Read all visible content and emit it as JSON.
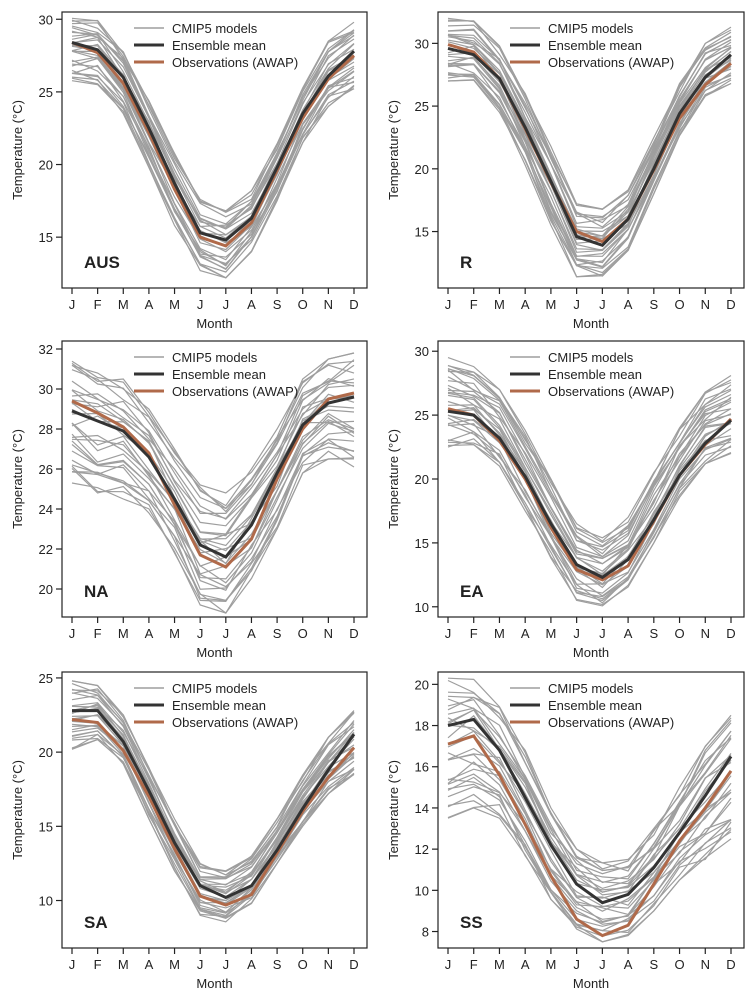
{
  "chart_data": [
    {
      "type": "line",
      "region_label": "AUS",
      "xlabel": "Month",
      "ylabel": "Temperature (°C)",
      "categories": [
        "J",
        "F",
        "M",
        "A",
        "M",
        "J",
        "J",
        "A",
        "S",
        "O",
        "N",
        "D"
      ],
      "ylim": [
        11.5,
        30.5
      ],
      "yticks": [
        15,
        20,
        25,
        30
      ],
      "grid": false,
      "legend_position": "top-right",
      "model_spread": {
        "upper": [
          30.2,
          30.1,
          28.0,
          24.5,
          21.0,
          17.6,
          17.0,
          18.2,
          21.5,
          25.3,
          28.5,
          29.8
        ],
        "lower": [
          25.7,
          25.5,
          23.5,
          19.8,
          15.8,
          12.7,
          12.2,
          14.0,
          17.5,
          21.5,
          24.0,
          25.0
        ]
      },
      "series": [
        {
          "name": "CMIP5 models",
          "color": "#9e9e9e"
        },
        {
          "name": "Ensemble mean",
          "color": "#333333",
          "values": [
            28.4,
            27.9,
            26.0,
            22.5,
            18.7,
            15.3,
            14.8,
            16.3,
            19.8,
            23.5,
            26.1,
            27.8
          ]
        },
        {
          "name": "Observations (AWAP)",
          "color": "#b06a4a",
          "values": [
            28.4,
            27.7,
            25.6,
            22.2,
            18.3,
            15.0,
            14.4,
            16.0,
            19.6,
            23.2,
            25.9,
            27.5
          ]
        }
      ]
    },
    {
      "type": "line",
      "region_label": "R",
      "xlabel": "Month",
      "ylabel": "Temperature (°C)",
      "categories": [
        "J",
        "F",
        "M",
        "A",
        "M",
        "J",
        "J",
        "A",
        "S",
        "O",
        "N",
        "D"
      ],
      "ylim": [
        10.5,
        32.5
      ],
      "yticks": [
        15,
        20,
        25,
        30
      ],
      "grid": false,
      "legend_position": "top-right",
      "model_spread": {
        "upper": [
          32.0,
          31.8,
          29.8,
          26.0,
          21.8,
          17.2,
          16.8,
          18.3,
          22.5,
          26.8,
          30.0,
          31.3
        ],
        "lower": [
          27.0,
          26.8,
          24.5,
          20.3,
          15.5,
          11.4,
          11.2,
          13.5,
          18.0,
          22.5,
          25.8,
          26.8
        ]
      },
      "series": [
        {
          "name": "CMIP5 models",
          "color": "#9e9e9e"
        },
        {
          "name": "Ensemble mean",
          "color": "#333333",
          "values": [
            29.6,
            29.1,
            27.2,
            23.3,
            19.0,
            14.6,
            13.9,
            16.0,
            20.0,
            24.4,
            27.3,
            29.1
          ]
        },
        {
          "name": "Observations (AWAP)",
          "color": "#b06a4a",
          "values": [
            29.9,
            29.3,
            27.2,
            23.2,
            18.9,
            15.0,
            14.2,
            16.0,
            19.9,
            24.0,
            26.7,
            28.4
          ]
        }
      ]
    },
    {
      "type": "line",
      "region_label": "NA",
      "xlabel": "Month",
      "ylabel": "Temperature (°C)",
      "categories": [
        "J",
        "F",
        "M",
        "A",
        "M",
        "J",
        "J",
        "A",
        "S",
        "O",
        "N",
        "D"
      ],
      "ylim": [
        18.6,
        32.4
      ],
      "yticks": [
        20,
        22,
        24,
        26,
        28,
        30,
        32
      ],
      "grid": false,
      "legend_position": "top-right",
      "model_spread": {
        "upper": [
          31.4,
          30.8,
          30.5,
          29.0,
          27.0,
          25.2,
          24.8,
          26.0,
          28.0,
          30.5,
          31.5,
          31.8
        ],
        "lower": [
          25.3,
          24.8,
          24.5,
          23.8,
          21.8,
          19.2,
          18.8,
          20.5,
          23.0,
          25.8,
          26.5,
          26.1
        ]
      },
      "series": [
        {
          "name": "CMIP5 models",
          "color": "#9e9e9e"
        },
        {
          "name": "Ensemble mean",
          "color": "#333333",
          "values": [
            28.9,
            28.4,
            27.9,
            26.6,
            24.5,
            22.2,
            21.6,
            23.2,
            25.8,
            28.2,
            29.3,
            29.6
          ]
        },
        {
          "name": "Observations (AWAP)",
          "color": "#b06a4a",
          "values": [
            29.4,
            28.8,
            28.1,
            26.8,
            24.2,
            21.7,
            21.1,
            22.5,
            25.5,
            28.0,
            29.5,
            29.8
          ]
        }
      ]
    },
    {
      "type": "line",
      "region_label": "EA",
      "xlabel": "Month",
      "ylabel": "Temperature (°C)",
      "categories": [
        "J",
        "F",
        "M",
        "A",
        "M",
        "J",
        "J",
        "A",
        "S",
        "O",
        "N",
        "D"
      ],
      "ylim": [
        9.2,
        30.8
      ],
      "yticks": [
        10,
        15,
        20,
        25,
        30
      ],
      "grid": false,
      "legend_position": "top-right",
      "model_spread": {
        "upper": [
          29.5,
          28.8,
          27.0,
          24.0,
          20.0,
          16.5,
          15.4,
          17.0,
          20.5,
          24.0,
          26.8,
          28.1
        ],
        "lower": [
          22.5,
          22.5,
          21.0,
          17.5,
          13.8,
          10.5,
          10.0,
          11.5,
          15.0,
          18.5,
          21.2,
          22.0
        ]
      },
      "series": [
        {
          "name": "CMIP5 models",
          "color": "#9e9e9e"
        },
        {
          "name": "Ensemble mean",
          "color": "#333333",
          "values": [
            25.3,
            25.0,
            23.2,
            20.2,
            16.5,
            13.3,
            12.3,
            13.7,
            16.8,
            20.3,
            22.8,
            24.6
          ]
        },
        {
          "name": "Observations (AWAP)",
          "color": "#b06a4a",
          "values": [
            25.5,
            25.0,
            23.0,
            20.0,
            16.2,
            12.9,
            12.1,
            13.2,
            16.7,
            20.3,
            22.7,
            24.7
          ]
        }
      ]
    },
    {
      "type": "line",
      "region_label": "SA",
      "xlabel": "Month",
      "ylabel": "Temperature (°C)",
      "categories": [
        "J",
        "F",
        "M",
        "A",
        "M",
        "J",
        "J",
        "A",
        "S",
        "O",
        "N",
        "D"
      ],
      "ylim": [
        6.8,
        25.4
      ],
      "yticks": [
        10,
        15,
        20,
        25
      ],
      "grid": false,
      "legend_position": "top-right",
      "model_spread": {
        "upper": [
          24.8,
          24.5,
          22.5,
          19.0,
          15.5,
          12.5,
          12.0,
          13.0,
          15.5,
          18.5,
          21.0,
          22.8
        ],
        "lower": [
          20.0,
          20.8,
          19.2,
          15.5,
          12.0,
          9.0,
          8.5,
          9.8,
          12.5,
          15.0,
          17.2,
          18.3
        ]
      },
      "series": [
        {
          "name": "CMIP5 models",
          "color": "#9e9e9e"
        },
        {
          "name": "Ensemble mean",
          "color": "#333333",
          "values": [
            22.8,
            22.8,
            20.7,
            17.4,
            13.9,
            11.0,
            10.2,
            11.0,
            13.4,
            16.2,
            18.8,
            21.2
          ]
        },
        {
          "name": "Observations (AWAP)",
          "color": "#b06a4a",
          "values": [
            22.2,
            22.0,
            20.1,
            17.0,
            13.5,
            10.3,
            9.7,
            10.4,
            13.2,
            16.0,
            18.3,
            20.3
          ]
        }
      ]
    },
    {
      "type": "line",
      "region_label": "SS",
      "xlabel": "Month",
      "ylabel": "Temperature (°C)",
      "categories": [
        "J",
        "F",
        "M",
        "A",
        "M",
        "J",
        "J",
        "A",
        "S",
        "O",
        "N",
        "D"
      ],
      "ylim": [
        7.2,
        20.6
      ],
      "yticks": [
        8,
        10,
        12,
        14,
        16,
        18,
        20
      ],
      "grid": false,
      "legend_position": "top-right",
      "model_spread": {
        "upper": [
          20.3,
          20.4,
          19.0,
          16.8,
          14.0,
          12.0,
          11.5,
          11.5,
          13.0,
          15.0,
          17.0,
          18.5
        ],
        "lower": [
          13.5,
          14.0,
          13.5,
          11.5,
          9.5,
          8.0,
          7.5,
          7.8,
          9.0,
          10.5,
          11.5,
          12.5
        ]
      },
      "series": [
        {
          "name": "CMIP5 models",
          "color": "#9e9e9e"
        },
        {
          "name": "Ensemble mean",
          "color": "#333333",
          "values": [
            18.0,
            18.3,
            16.8,
            14.5,
            12.2,
            10.3,
            9.4,
            9.8,
            11.1,
            12.8,
            14.6,
            16.5
          ]
        },
        {
          "name": "Observations (AWAP)",
          "color": "#b06a4a",
          "values": [
            17.1,
            17.5,
            15.6,
            13.2,
            10.7,
            8.6,
            7.8,
            8.3,
            10.3,
            12.4,
            14.0,
            15.8
          ]
        }
      ]
    }
  ]
}
